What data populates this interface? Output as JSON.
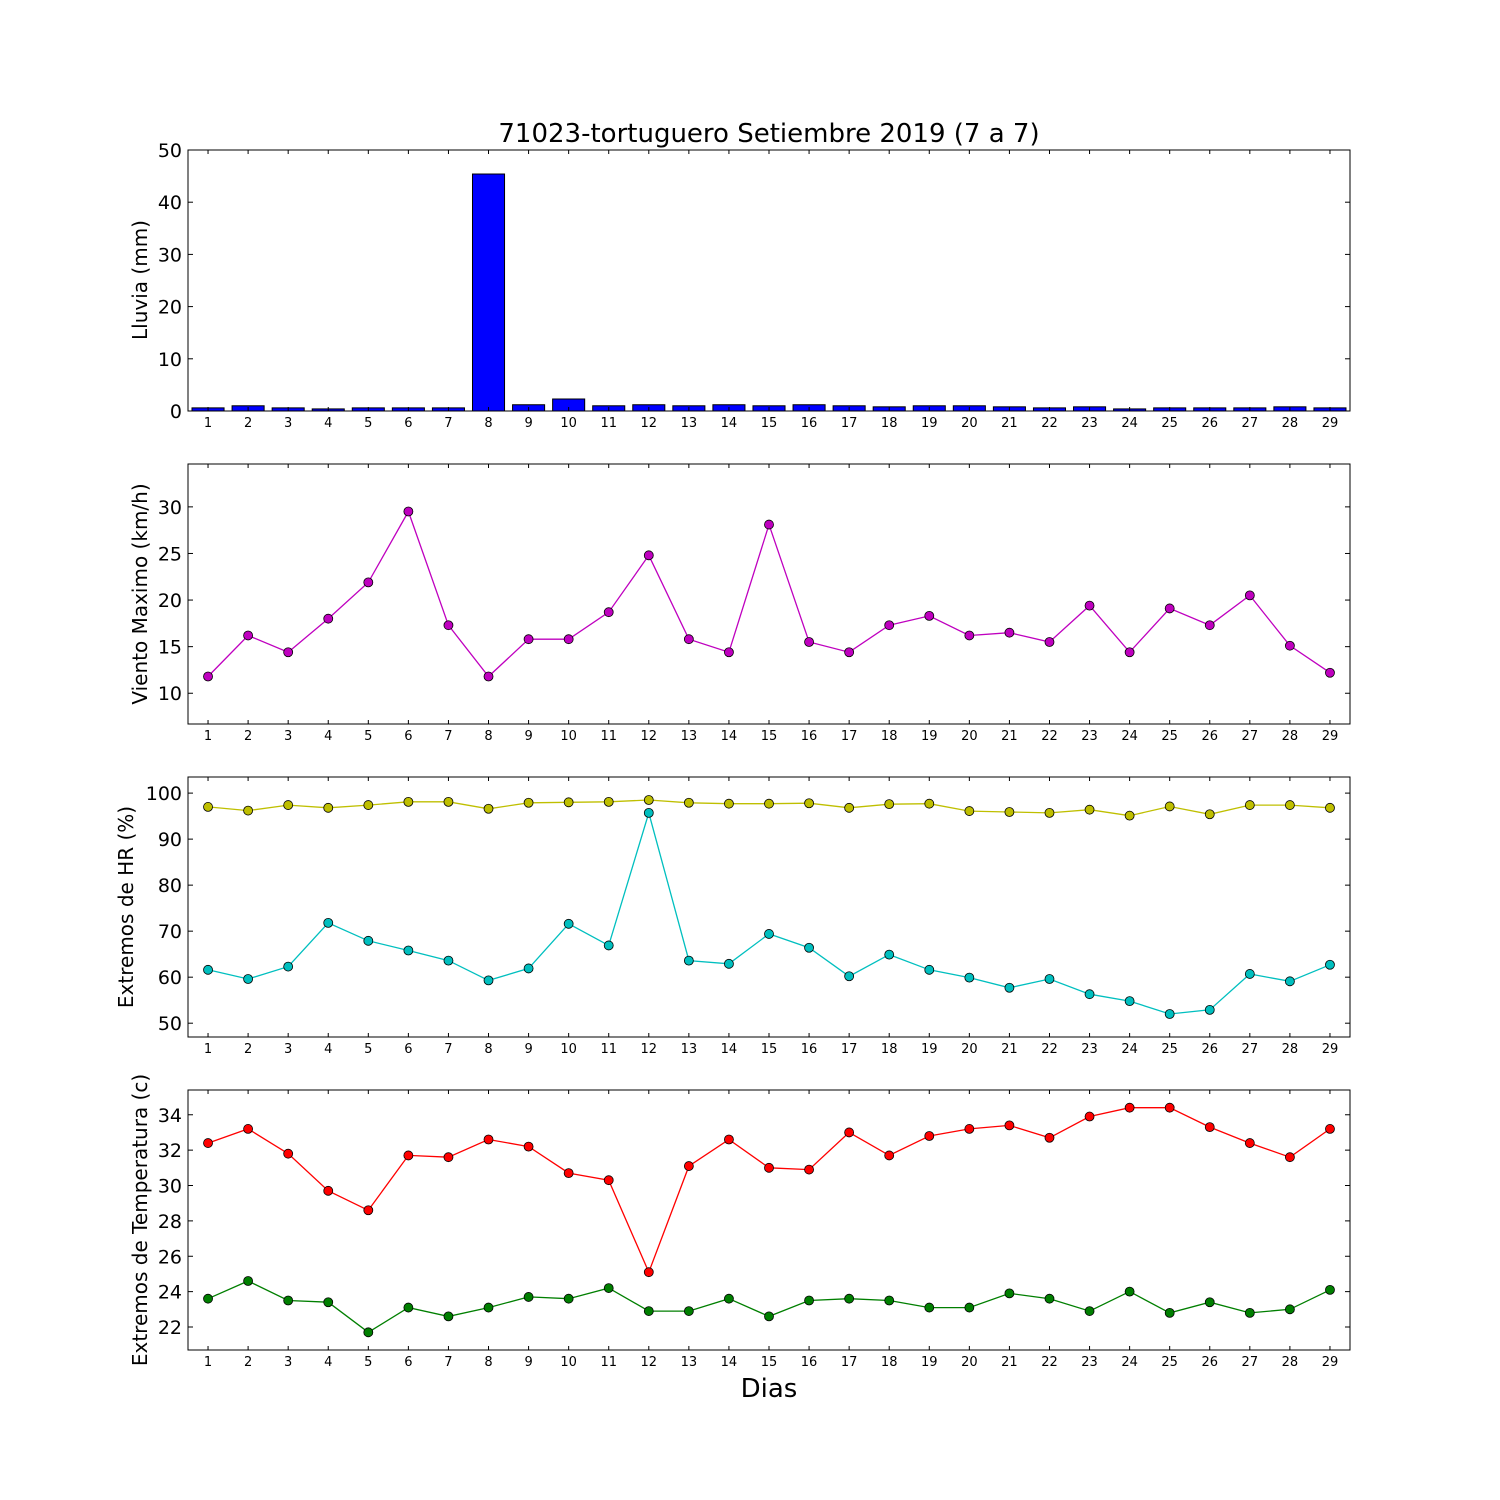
{
  "chart_data": [
    {
      "type": "bar",
      "title": "71023-tortuguero Setiembre 2019  (7 a 7)",
      "xlabel": "",
      "ylabel": "Lluvia (mm)",
      "categories": [
        "1",
        "2",
        "3",
        "4",
        "5",
        "6",
        "7",
        "8",
        "9",
        "10",
        "11",
        "12",
        "13",
        "14",
        "15",
        "16",
        "17",
        "18",
        "19",
        "20",
        "21",
        "22",
        "23",
        "24",
        "25",
        "26",
        "27",
        "28",
        "29"
      ],
      "values": [
        0.6,
        1.0,
        0.6,
        0.4,
        0.6,
        0.6,
        0.6,
        45.4,
        1.2,
        2.3,
        1.0,
        1.2,
        1.0,
        1.2,
        1.0,
        1.2,
        1.0,
        0.8,
        1.0,
        1.0,
        0.8,
        0.6,
        0.8,
        0.4,
        0.6,
        0.6,
        0.6,
        0.8,
        0.6
      ],
      "ylim": [
        0,
        50
      ],
      "yticks": [
        0,
        10,
        20,
        30,
        40,
        50
      ],
      "colors": {
        "bar": "#0000ff"
      }
    },
    {
      "type": "line",
      "title": "",
      "xlabel": "",
      "ylabel": "Viento Maximo (km/h)",
      "categories": [
        "1",
        "2",
        "3",
        "4",
        "5",
        "6",
        "7",
        "8",
        "9",
        "10",
        "11",
        "12",
        "13",
        "14",
        "15",
        "16",
        "17",
        "18",
        "19",
        "20",
        "21",
        "22",
        "23",
        "24",
        "25",
        "26",
        "27",
        "28",
        "29"
      ],
      "series": [
        {
          "values": [
            11.8,
            16.2,
            14.4,
            18.0,
            21.9,
            29.5,
            17.3,
            11.8,
            15.8,
            15.8,
            18.7,
            24.8,
            15.8,
            14.4,
            28.1,
            15.5,
            14.4,
            17.3,
            18.3,
            16.2,
            16.5,
            15.5,
            19.4,
            14.4,
            19.1,
            17.3,
            20.5,
            15.1,
            12.2
          ],
          "color": "#bf00bf"
        }
      ],
      "ylim": [
        6.7,
        34.6
      ],
      "yticks": [
        10,
        15,
        20,
        25,
        30
      ]
    },
    {
      "type": "line",
      "title": "",
      "xlabel": "",
      "ylabel": "Extremos de HR (%)",
      "categories": [
        "1",
        "2",
        "3",
        "4",
        "5",
        "6",
        "7",
        "8",
        "9",
        "10",
        "11",
        "12",
        "13",
        "14",
        "15",
        "16",
        "17",
        "18",
        "19",
        "20",
        "21",
        "22",
        "23",
        "24",
        "25",
        "26",
        "27",
        "28",
        "29"
      ],
      "series": [
        {
          "values": [
            97.0,
            96.2,
            97.4,
            96.8,
            97.4,
            98.1,
            98.1,
            96.6,
            97.9,
            98.0,
            98.1,
            98.5,
            97.9,
            97.7,
            97.7,
            97.8,
            96.8,
            97.6,
            97.7,
            96.1,
            95.9,
            95.7,
            96.4,
            95.1,
            97.1,
            95.4,
            97.4,
            97.4,
            96.8
          ],
          "color": "#bfbf00"
        },
        {
          "values": [
            61.6,
            59.6,
            62.3,
            71.8,
            67.9,
            65.8,
            63.6,
            59.3,
            61.9,
            71.6,
            66.9,
            95.7,
            63.6,
            62.9,
            69.4,
            66.4,
            60.2,
            64.9,
            61.6,
            59.9,
            57.7,
            59.6,
            56.3,
            54.8,
            52.0,
            52.9,
            60.7,
            59.1,
            62.7
          ],
          "color": "#00bfbf"
        }
      ],
      "ylim": [
        47.0,
        103.5
      ],
      "yticks": [
        50,
        60,
        70,
        80,
        90,
        100
      ]
    },
    {
      "type": "line",
      "title": "",
      "xlabel": "Dias",
      "ylabel": "Extremos de Temperatura (c)",
      "categories": [
        "1",
        "2",
        "3",
        "4",
        "5",
        "6",
        "7",
        "8",
        "9",
        "10",
        "11",
        "12",
        "13",
        "14",
        "15",
        "16",
        "17",
        "18",
        "19",
        "20",
        "21",
        "22",
        "23",
        "24",
        "25",
        "26",
        "27",
        "28",
        "29"
      ],
      "series": [
        {
          "values": [
            32.4,
            33.2,
            31.8,
            29.7,
            28.6,
            31.7,
            31.6,
            32.6,
            32.2,
            30.7,
            30.3,
            25.1,
            31.1,
            32.6,
            31.0,
            30.9,
            33.0,
            31.7,
            32.8,
            33.2,
            33.4,
            32.7,
            33.9,
            34.4,
            34.4,
            33.3,
            32.4,
            31.6,
            33.2
          ],
          "color": "#ff0000"
        },
        {
          "values": [
            23.6,
            24.6,
            23.5,
            23.4,
            21.7,
            23.1,
            22.6,
            23.1,
            23.7,
            23.6,
            24.2,
            22.9,
            22.9,
            23.6,
            22.6,
            23.5,
            23.6,
            23.5,
            23.1,
            23.1,
            23.9,
            23.6,
            22.9,
            24.0,
            22.8,
            23.4,
            22.8,
            23.0,
            24.1
          ],
          "color": "#007f00"
        }
      ],
      "ylim": [
        20.7,
        35.4
      ],
      "yticks": [
        22,
        24,
        26,
        28,
        30,
        32,
        34
      ]
    }
  ]
}
